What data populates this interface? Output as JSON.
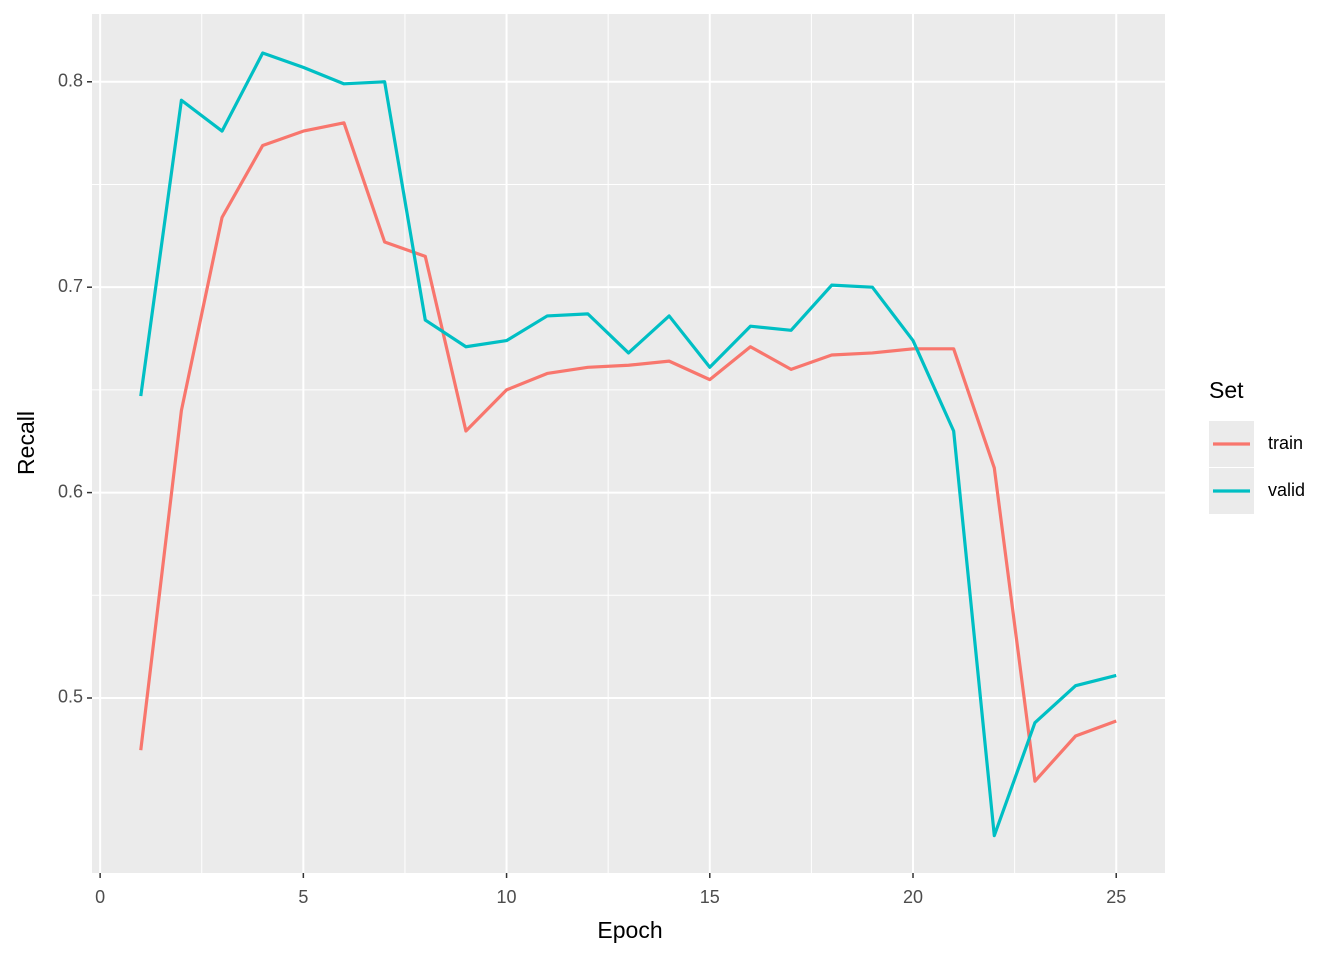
{
  "chart_data": {
    "type": "line",
    "x_label": "Epoch",
    "y_label": "Recall",
    "legend_title": "Set",
    "x": [
      1,
      2,
      3,
      4,
      5,
      6,
      7,
      8,
      9,
      10,
      11,
      12,
      13,
      14,
      15,
      16,
      17,
      18,
      19,
      20,
      21,
      22,
      23,
      24,
      25
    ],
    "series": [
      {
        "name": "train",
        "color": "#F8766D",
        "values": [
          0.4746,
          0.64,
          0.734,
          0.769,
          0.776,
          0.78,
          0.722,
          0.715,
          0.63,
          0.65,
          0.658,
          0.661,
          0.662,
          0.664,
          0.655,
          0.671,
          0.66,
          0.667,
          0.668,
          0.67,
          0.67,
          0.612,
          0.4595,
          0.4815,
          0.4888
        ]
      },
      {
        "name": "valid",
        "color": "#00BFC4",
        "values": [
          0.647,
          0.791,
          0.776,
          0.814,
          0.807,
          0.799,
          0.8,
          0.684,
          0.671,
          0.674,
          0.686,
          0.687,
          0.668,
          0.686,
          0.661,
          0.681,
          0.679,
          0.701,
          0.7,
          0.674,
          0.63,
          0.433,
          0.488,
          0.506,
          0.511
        ]
      }
    ],
    "xlim": [
      -0.2,
      26.2
    ],
    "xticks": [
      0,
      5,
      10,
      15,
      20,
      25
    ],
    "ylim": [
      0.4148,
      0.833
    ],
    "yticks": [
      0.5,
      0.6,
      0.7,
      0.8
    ],
    "grid": true,
    "legend": "right"
  }
}
